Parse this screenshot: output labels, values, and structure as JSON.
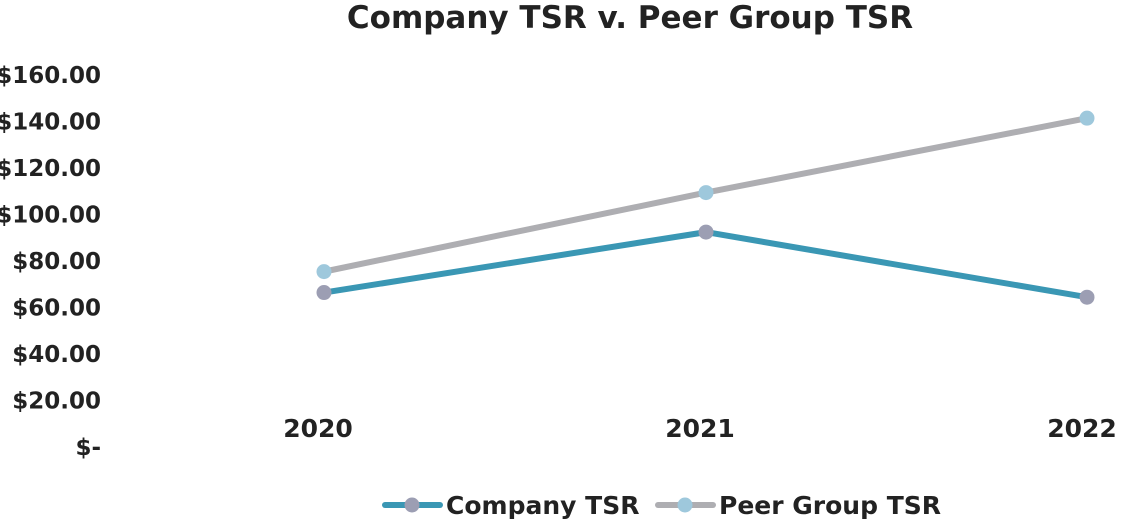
{
  "chart_data": {
    "type": "line",
    "title": "Company TSR v. Peer Group TSR",
    "xlabel": "",
    "ylabel": "",
    "categories": [
      "2020",
      "2021",
      "2022"
    ],
    "ylim": [
      0,
      160
    ],
    "y_ticks": [
      {
        "value": 160,
        "label": "$160.00"
      },
      {
        "value": 140,
        "label": "$140.00"
      },
      {
        "value": 120,
        "label": "$120.00"
      },
      {
        "value": 100,
        "label": "$100.00"
      },
      {
        "value": 80,
        "label": "$80.00"
      },
      {
        "value": 60,
        "label": "$60.00"
      },
      {
        "value": 40,
        "label": "$40.00"
      },
      {
        "value": 20,
        "label": "$20.00"
      },
      {
        "value": 0,
        "label": "$-"
      }
    ],
    "grid": false,
    "legend_position": "bottom",
    "series": [
      {
        "name": "Company TSR",
        "values": [
          66,
          92,
          64
        ],
        "line_color": "#3a97b4",
        "marker_color": "#9c9eb3"
      },
      {
        "name": "Peer Group TSR",
        "values": [
          75,
          109,
          141
        ],
        "line_color": "#aeaeb2",
        "marker_color": "#9ec8dc"
      }
    ]
  }
}
